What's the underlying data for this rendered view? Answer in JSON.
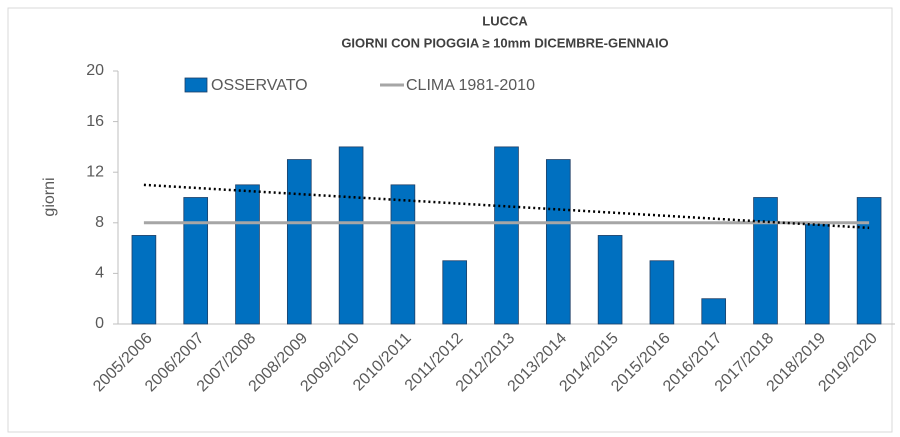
{
  "chart_data": {
    "type": "bar",
    "title": "LUCCA",
    "subtitle": "GIORNI CON PIOGGIA  ≥ 10mm DICEMBRE-GENNAIO",
    "y_label": "giorni",
    "categories": [
      "2005/2006",
      "2006/2007",
      "2007/2008",
      "2008/2009",
      "2009/2010",
      "2010/2011",
      "2011/2012",
      "2012/2013",
      "2013/2014",
      "2014/2015",
      "2015/2016",
      "2016/2017",
      "2017/2018",
      "2018/2019",
      "2019/2020"
    ],
    "series": [
      {
        "name": "OSSERVATO",
        "type": "bar",
        "color": "#0070c0",
        "values": [
          7,
          10,
          11,
          13,
          14,
          11,
          5,
          14,
          13,
          7,
          5,
          2,
          10,
          8,
          10
        ]
      },
      {
        "name": "CLIMA 1981-2010",
        "type": "line",
        "color": "#a6a6a6",
        "values": [
          8,
          8,
          8,
          8,
          8,
          8,
          8,
          8,
          8,
          8,
          8,
          8,
          8,
          8,
          8
        ]
      }
    ],
    "trendline": {
      "values": [
        11,
        7.6
      ],
      "color": "#000000"
    },
    "ylim": [
      0,
      20
    ],
    "yticks": [
      0,
      4,
      8,
      12,
      16,
      20
    ],
    "grid": false
  }
}
